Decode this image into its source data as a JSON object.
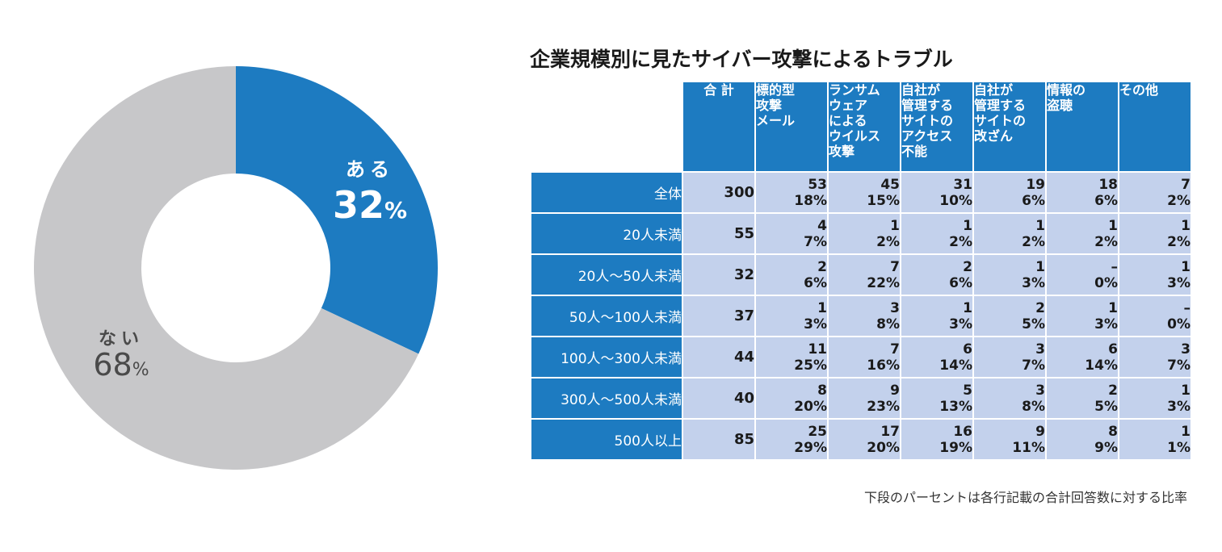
{
  "chart_data": [
    {
      "type": "pie",
      "variant": "donut",
      "slices": [
        {
          "label": "ある",
          "value": 32,
          "value_text": "32",
          "unit": "%",
          "color": "#1d7bc1",
          "label_color": "#ffffff"
        },
        {
          "label": "ない",
          "value": 68,
          "value_text": "68",
          "unit": "%",
          "color": "#c7c7c9",
          "label_color": "#4a4a4a"
        }
      ]
    },
    {
      "type": "table",
      "title": "企業規模別に見たサイバー攻撃によるトラブル",
      "columns": [
        "合 計",
        "標的型\n攻撃\nメール",
        "ランサム\nウェア\nによる\nウイルス\n攻撃",
        "自社が\n管理する\nサイトの\nアクセス\n不能",
        "自社が\n管理する\nサイトの\n改ざん",
        "情報の\n盗聴",
        "その他"
      ],
      "rows": [
        {
          "label": "全体",
          "total": "300",
          "cells": [
            [
              "53",
              "18%"
            ],
            [
              "45",
              "15%"
            ],
            [
              "31",
              "10%"
            ],
            [
              "19",
              "6%"
            ],
            [
              "18",
              "6%"
            ],
            [
              "7",
              "2%"
            ]
          ]
        },
        {
          "label": "20人未満",
          "total": "55",
          "cells": [
            [
              "4",
              "7%"
            ],
            [
              "1",
              "2%"
            ],
            [
              "1",
              "2%"
            ],
            [
              "1",
              "2%"
            ],
            [
              "1",
              "2%"
            ],
            [
              "1",
              "2%"
            ]
          ]
        },
        {
          "label": "20人〜50人未満",
          "total": "32",
          "cells": [
            [
              "2",
              "6%"
            ],
            [
              "7",
              "22%"
            ],
            [
              "2",
              "6%"
            ],
            [
              "1",
              "3%"
            ],
            [
              "–",
              "0%"
            ],
            [
              "1",
              "3%"
            ]
          ]
        },
        {
          "label": "50人〜100人未満",
          "total": "37",
          "cells": [
            [
              "1",
              "3%"
            ],
            [
              "3",
              "8%"
            ],
            [
              "1",
              "3%"
            ],
            [
              "2",
              "5%"
            ],
            [
              "1",
              "3%"
            ],
            [
              "–",
              "0%"
            ]
          ]
        },
        {
          "label": "100人〜300人未満",
          "total": "44",
          "cells": [
            [
              "11",
              "25%"
            ],
            [
              "7",
              "16%"
            ],
            [
              "6",
              "14%"
            ],
            [
              "3",
              "7%"
            ],
            [
              "6",
              "14%"
            ],
            [
              "3",
              "7%"
            ]
          ]
        },
        {
          "label": "300人〜500人未満",
          "total": "40",
          "cells": [
            [
              "8",
              "20%"
            ],
            [
              "9",
              "23%"
            ],
            [
              "5",
              "13%"
            ],
            [
              "3",
              "8%"
            ],
            [
              "2",
              "5%"
            ],
            [
              "1",
              "3%"
            ]
          ]
        },
        {
          "label": "500人以上",
          "total": "85",
          "cells": [
            [
              "25",
              "29%"
            ],
            [
              "17",
              "20%"
            ],
            [
              "16",
              "19%"
            ],
            [
              "9",
              "11%"
            ],
            [
              "8",
              "9%"
            ],
            [
              "1",
              "1%"
            ]
          ]
        }
      ],
      "footnote": "下段のパーセントは各行記載の合計回答数に対する比率"
    }
  ]
}
